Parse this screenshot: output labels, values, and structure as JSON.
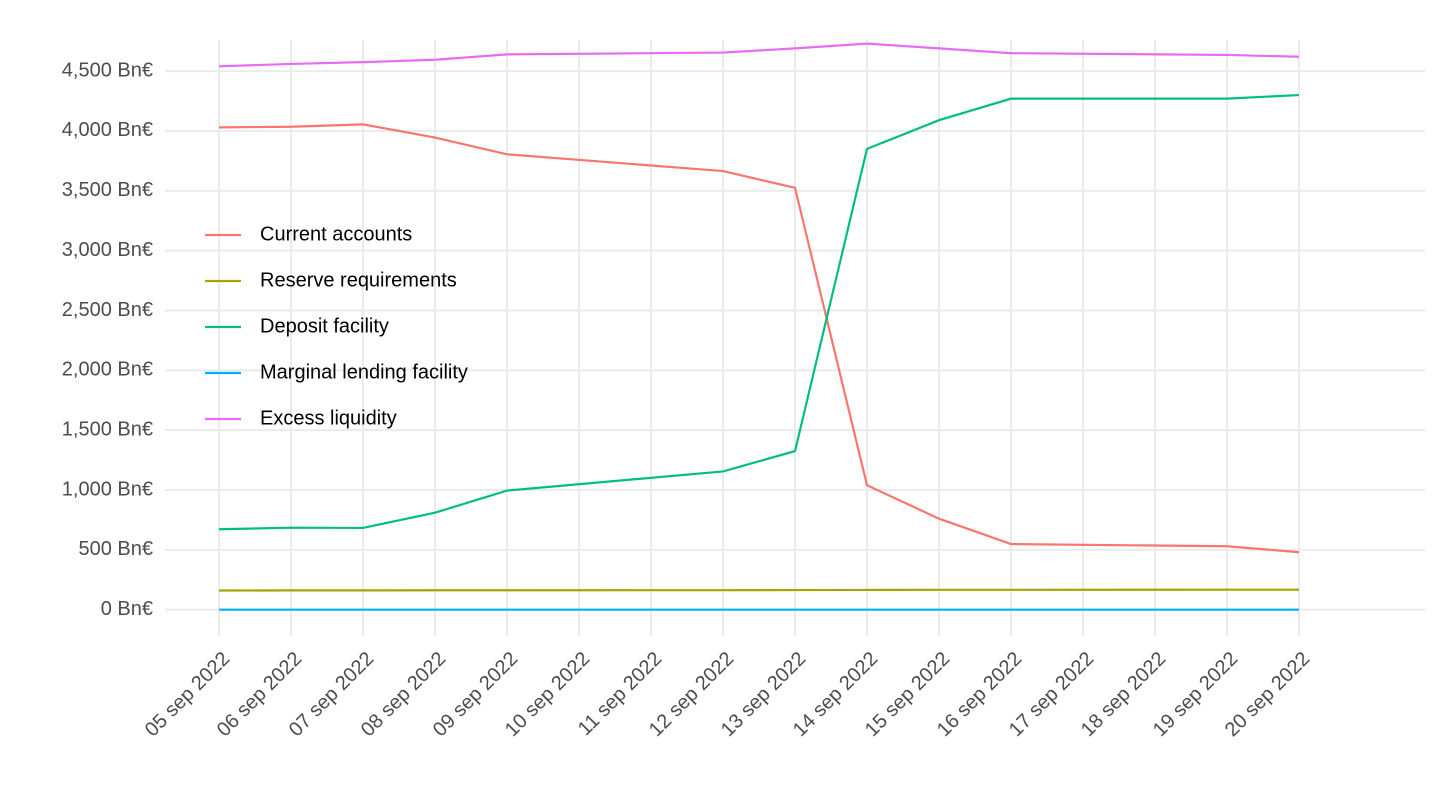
{
  "chart_data": {
    "type": "line",
    "x": [
      "2022-09-05",
      "2022-09-06",
      "2022-09-07",
      "2022-09-08",
      "2022-09-09",
      "2022-09-12",
      "2022-09-13",
      "2022-09-14",
      "2022-09-15",
      "2022-09-16",
      "2022-09-19",
      "2022-09-20"
    ],
    "series": [
      {
        "name": "Current accounts",
        "color": "#F8766D",
        "values": [
          4030,
          4035,
          4055,
          3945,
          3805,
          3665,
          3525,
          1040,
          760,
          548,
          530,
          480
        ]
      },
      {
        "name": "Reserve requirements",
        "color": "#A3A500",
        "values": [
          160,
          161,
          161,
          162,
          162,
          163,
          164,
          165,
          166,
          166,
          167,
          167
        ]
      },
      {
        "name": "Deposit facility",
        "color": "#00BF7D",
        "values": [
          672,
          685,
          683,
          810,
          995,
          1155,
          1325,
          3850,
          4090,
          4270,
          4270,
          4300
        ]
      },
      {
        "name": "Marginal lending facility",
        "color": "#00B0F6",
        "values": [
          0,
          0,
          0,
          0,
          0,
          0,
          0,
          0,
          0,
          0,
          0,
          0
        ]
      },
      {
        "name": "Excess liquidity",
        "color": "#E76BF3",
        "values": [
          4540,
          4560,
          4575,
          4595,
          4640,
          4655,
          4690,
          4730,
          4690,
          4650,
          4635,
          4620
        ]
      }
    ],
    "xlim": [
      "2022-09-04T06:00",
      "2022-09-21T18:00"
    ],
    "xticks": [
      {
        "value": "2022-09-05",
        "label": "05 sep 2022"
      },
      {
        "value": "2022-09-06",
        "label": "06 sep 2022"
      },
      {
        "value": "2022-09-07",
        "label": "07 sep 2022"
      },
      {
        "value": "2022-09-08",
        "label": "08 sep 2022"
      },
      {
        "value": "2022-09-09",
        "label": "09 sep 2022"
      },
      {
        "value": "2022-09-10",
        "label": "10 sep 2022"
      },
      {
        "value": "2022-09-11",
        "label": "11 sep 2022"
      },
      {
        "value": "2022-09-12",
        "label": "12 sep 2022"
      },
      {
        "value": "2022-09-13",
        "label": "13 sep 2022"
      },
      {
        "value": "2022-09-14",
        "label": "14 sep 2022"
      },
      {
        "value": "2022-09-15",
        "label": "15 sep 2022"
      },
      {
        "value": "2022-09-16",
        "label": "16 sep 2022"
      },
      {
        "value": "2022-09-17",
        "label": "17 sep 2022"
      },
      {
        "value": "2022-09-18",
        "label": "18 sep 2022"
      },
      {
        "value": "2022-09-19",
        "label": "19 sep 2022"
      },
      {
        "value": "2022-09-20",
        "label": "20 sep 2022"
      }
    ],
    "ylim": [
      -220,
      4760
    ],
    "yticks": [
      {
        "value": 0,
        "label": "0 Bn€"
      },
      {
        "value": 500,
        "label": "500 Bn€"
      },
      {
        "value": 1000,
        "label": "1,000 Bn€"
      },
      {
        "value": 1500,
        "label": "1,500 Bn€"
      },
      {
        "value": 2000,
        "label": "2,000 Bn€"
      },
      {
        "value": 2500,
        "label": "2,500 Bn€"
      },
      {
        "value": 3000,
        "label": "3,000 Bn€"
      },
      {
        "value": 3500,
        "label": "3,500 Bn€"
      },
      {
        "value": 4000,
        "label": "4,000 Bn€"
      },
      {
        "value": 4500,
        "label": "4,500 Bn€"
      }
    ],
    "grid": true,
    "legend": "left"
  }
}
